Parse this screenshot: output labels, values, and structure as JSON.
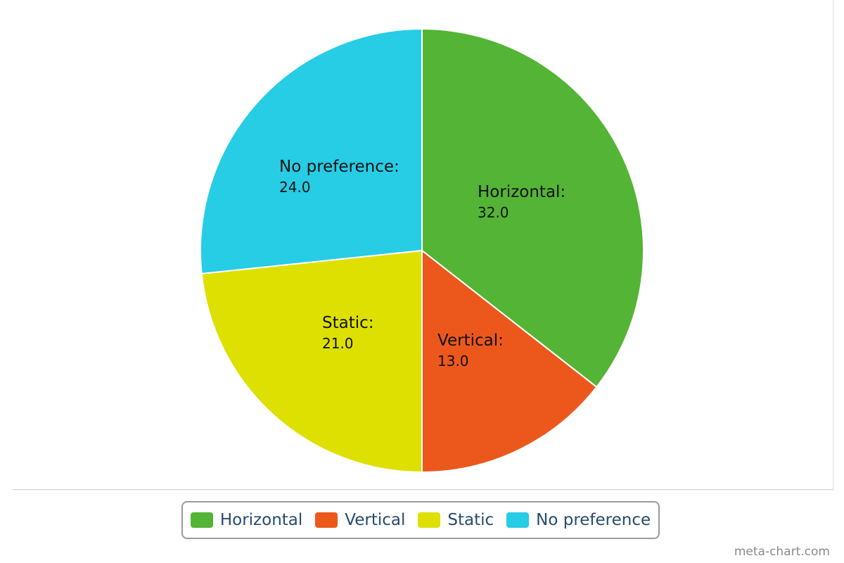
{
  "chart_data": {
    "type": "pie",
    "title": "",
    "categories": [
      "Horizontal",
      "Vertical",
      "Static",
      "No preference"
    ],
    "values": [
      32.0,
      13.0,
      21.0,
      24.0
    ],
    "value_labels": [
      "32.0",
      "13.0",
      "21.0",
      "24.0"
    ],
    "colors": [
      "#54b435",
      "#ec581c",
      "#dde000",
      "#27cce5"
    ],
    "start_angle_deg": 0,
    "direction": "clockwise",
    "legend_position": "bottom-center",
    "show_data_labels": true
  },
  "credit": "meta-chart.com"
}
